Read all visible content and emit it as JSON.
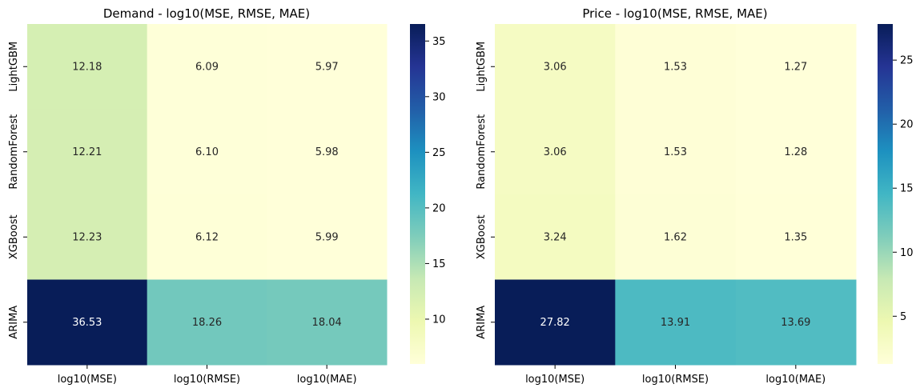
{
  "chart_data": [
    {
      "type": "heatmap",
      "title": "Demand - log10(MSE, RMSE, MAE)",
      "rows": [
        "LightGBM",
        "RandomForest",
        "XGBoost",
        "ARIMA"
      ],
      "columns": [
        "log10(MSE)",
        "log10(RMSE)",
        "log10(MAE)"
      ],
      "values": [
        [
          "12.18",
          "6.09",
          "5.97"
        ],
        [
          "12.21",
          "6.10",
          "5.98"
        ],
        [
          "12.23",
          "6.12",
          "5.99"
        ],
        [
          "36.53",
          "18.26",
          "18.04"
        ]
      ],
      "colormap": "YlGnBu",
      "colorbar_range": [
        5.97,
        36.53
      ],
      "colorbar_ticks": [
        "10",
        "15",
        "20",
        "25",
        "30",
        "35"
      ]
    },
    {
      "type": "heatmap",
      "title": "Price - log10(MSE, RMSE, MAE)",
      "rows": [
        "LightGBM",
        "RandomForest",
        "XGBoost",
        "ARIMA"
      ],
      "columns": [
        "log10(MSE)",
        "log10(RMSE)",
        "log10(MAE)"
      ],
      "values": [
        [
          "3.06",
          "1.53",
          "1.27"
        ],
        [
          "3.06",
          "1.53",
          "1.28"
        ],
        [
          "3.24",
          "1.62",
          "1.35"
        ],
        [
          "27.82",
          "13.91",
          "13.69"
        ]
      ],
      "colormap": "YlGnBu",
      "colorbar_range": [
        1.27,
        27.82
      ],
      "colorbar_ticks": [
        "5",
        "10",
        "15",
        "20",
        "25"
      ]
    }
  ]
}
